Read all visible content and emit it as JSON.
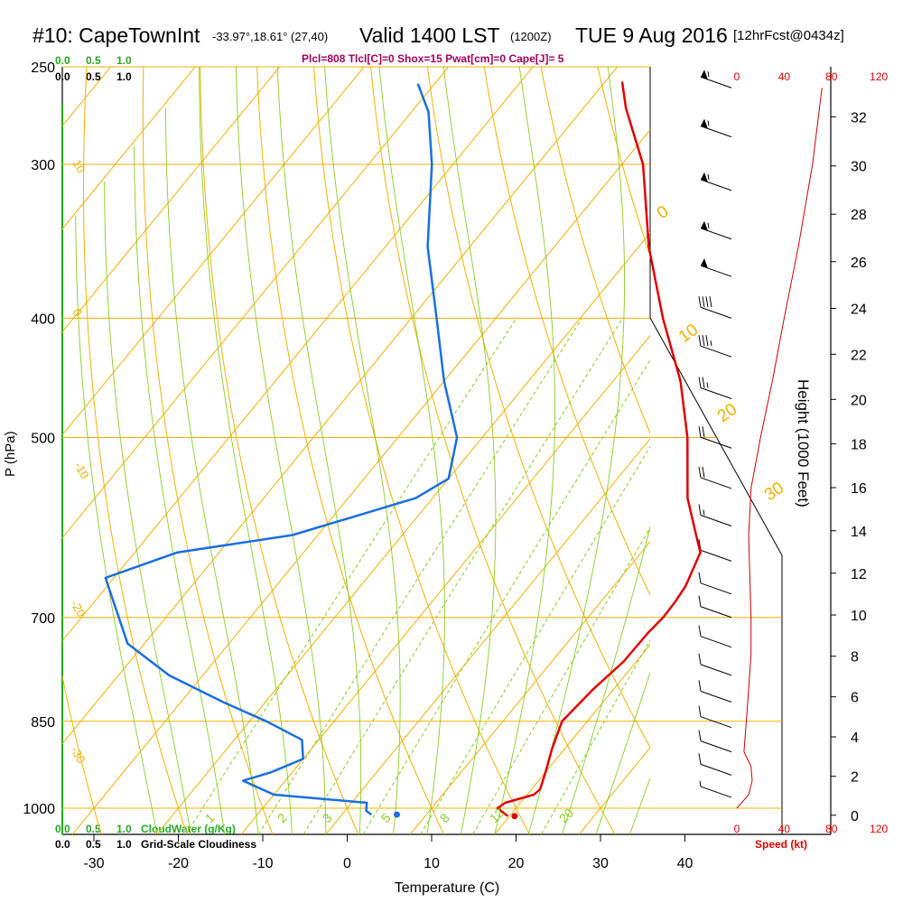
{
  "title": {
    "station": "#10: CapeTownInt",
    "coords": "-33.97°,18.61° (27,40)",
    "valid": "Valid 1400 LST",
    "zulu": "(1200Z)",
    "date": "TUE 9 Aug 2016",
    "forecast": "[12hrFcst@0434z]"
  },
  "stats_line": "Plcl=808 Tlcl[C]=0 Shox=15 Pwat[cm]=0 Cape[J]= 5",
  "cloud_scale": {
    "top_green": [
      "0.0",
      "0.5",
      "1.0"
    ],
    "top_black": [
      "0.0",
      "0.5",
      "1.0"
    ],
    "bottom_green": [
      "0.0",
      "0.5",
      "1.0"
    ],
    "bottom_green_label": "CloudWater (g/Kg)",
    "bottom_black": [
      "0.0",
      "0.5",
      "1.0"
    ],
    "bottom_black_label": "Grid-Scale Cloudiness"
  },
  "chart_data": {
    "type": "line",
    "xlabel": "Temperature (C)",
    "ylabel": "P (hPa)",
    "x_ticks": [
      "-30",
      "-20",
      "-10",
      "0",
      "10",
      "20",
      "30",
      "40"
    ],
    "y_ticks": [
      "250",
      "300",
      "400",
      "500",
      "700",
      "850",
      "1000"
    ],
    "height_axis_label": "Height (1000 Feet)",
    "height_ticks": [
      "0",
      "2",
      "4",
      "6",
      "8",
      "10",
      "12",
      "14",
      "16",
      "18",
      "20",
      "22",
      "24",
      "26",
      "28",
      "30",
      "32"
    ],
    "speed_axis_label": "Speed (kt)",
    "speed_ticks": [
      "0",
      "40",
      "80",
      "120"
    ],
    "dry_adiabat_labels": [
      "10",
      "0",
      "-10",
      "-20",
      "-30",
      "0",
      "10",
      "20",
      "30"
    ],
    "mixing_ratio_labels": [
      "1",
      "2",
      "3",
      "5",
      "8",
      "12",
      "20"
    ],
    "surface_temperature": 20.6,
    "surface_dewpoint": 6.5,
    "series": [
      {
        "name": "temperature",
        "color": "#e00000",
        "points": [
          [
            19.8,
            1015
          ],
          [
            17.8,
            1000
          ],
          [
            18.2,
            990
          ],
          [
            20.8,
            975
          ],
          [
            21.0,
            965
          ],
          [
            20.0,
            935
          ],
          [
            18.5,
            895
          ],
          [
            17.0,
            850
          ],
          [
            17.6,
            800
          ],
          [
            18.5,
            760
          ],
          [
            18.6,
            720
          ],
          [
            18.9,
            700
          ],
          [
            18.8,
            680
          ],
          [
            18.5,
            660
          ],
          [
            17.0,
            620
          ],
          [
            14.8,
            600
          ],
          [
            10.2,
            560
          ],
          [
            4.3,
            500
          ],
          [
            -2.0,
            450
          ],
          [
            -10.2,
            400
          ],
          [
            -18.8,
            350
          ],
          [
            -27.5,
            300
          ],
          [
            -35.0,
            270
          ],
          [
            -38.0,
            257
          ]
        ]
      },
      {
        "name": "dewpoint",
        "color": "#1a6ee0",
        "points": [
          [
            3.5,
            1012
          ],
          [
            2.5,
            1005
          ],
          [
            1.8,
            990
          ],
          [
            -10.0,
            975
          ],
          [
            -13.0,
            960
          ],
          [
            -15.0,
            950
          ],
          [
            -12.5,
            935
          ],
          [
            -10.0,
            912
          ],
          [
            -12.0,
            880
          ],
          [
            -18.0,
            850
          ],
          [
            -25.0,
            820
          ],
          [
            -34.0,
            780
          ],
          [
            -42.0,
            735
          ],
          [
            -51.0,
            650
          ],
          [
            -45.0,
            620
          ],
          [
            -33.0,
            600
          ],
          [
            -22.0,
            560
          ],
          [
            -20.0,
            540
          ],
          [
            -23.0,
            500
          ],
          [
            -30.0,
            450
          ],
          [
            -37.0,
            400
          ],
          [
            -45.0,
            350
          ],
          [
            -52.5,
            300
          ],
          [
            -58.0,
            272
          ],
          [
            -62.0,
            258
          ]
        ]
      },
      {
        "name": "wind_speed",
        "color": "#cc0000",
        "points": [
          [
            0,
            1000
          ],
          [
            10,
            975
          ],
          [
            13,
            950
          ],
          [
            12,
            925
          ],
          [
            6,
            900
          ],
          [
            8,
            850
          ],
          [
            10,
            800
          ],
          [
            12,
            750
          ],
          [
            12,
            700
          ],
          [
            11,
            650
          ],
          [
            10,
            600
          ],
          [
            12,
            550
          ],
          [
            20,
            500
          ],
          [
            30,
            450
          ],
          [
            40,
            400
          ],
          [
            52,
            350
          ],
          [
            64,
            300
          ],
          [
            72,
            260
          ]
        ]
      }
    ],
    "wind_barbs": [
      {
        "p": 260,
        "kt": 55
      },
      {
        "p": 285,
        "kt": 55
      },
      {
        "p": 315,
        "kt": 55
      },
      {
        "p": 345,
        "kt": 55
      },
      {
        "p": 370,
        "kt": 50
      },
      {
        "p": 400,
        "kt": 40
      },
      {
        "p": 430,
        "kt": 35
      },
      {
        "p": 465,
        "kt": 25
      },
      {
        "p": 510,
        "kt": 20
      },
      {
        "p": 550,
        "kt": 20
      },
      {
        "p": 590,
        "kt": 15
      },
      {
        "p": 630,
        "kt": 10
      },
      {
        "p": 670,
        "kt": 10
      },
      {
        "p": 700,
        "kt": 10
      },
      {
        "p": 740,
        "kt": 10
      },
      {
        "p": 780,
        "kt": 10
      },
      {
        "p": 820,
        "kt": 10
      },
      {
        "p": 860,
        "kt": 10
      },
      {
        "p": 900,
        "kt": 10
      },
      {
        "p": 940,
        "kt": 10
      },
      {
        "p": 980,
        "kt": 5
      }
    ]
  }
}
